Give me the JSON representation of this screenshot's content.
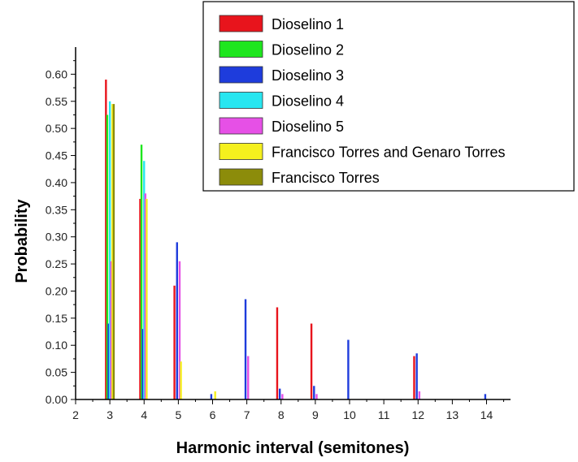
{
  "chart_data": {
    "type": "bar",
    "title": "",
    "xlabel": "Harmonic interval (semitones)",
    "ylabel": "Probability",
    "xlim": [
      2,
      14.7
    ],
    "ylim": [
      0,
      0.65
    ],
    "x_ticks": [
      2,
      3,
      4,
      5,
      6,
      7,
      8,
      9,
      10,
      11,
      12,
      13,
      14
    ],
    "y_ticks": [
      0.0,
      0.05,
      0.1,
      0.15,
      0.2,
      0.25,
      0.3,
      0.35,
      0.4,
      0.45,
      0.5,
      0.55,
      0.6
    ],
    "grid": false,
    "legend_position": "top-right",
    "series": [
      {
        "name": "Dioselino 1",
        "color": "#e8141c",
        "x": [
          3,
          4,
          5,
          8,
          9,
          10,
          12
        ],
        "values": [
          0.59,
          0.37,
          0.21,
          0.17,
          0.14,
          0.0,
          0.08
        ]
      },
      {
        "name": "Dioselino 2",
        "color": "#1ee61e",
        "x": [
          3,
          4
        ],
        "values": [
          0.525,
          0.47
        ]
      },
      {
        "name": "Dioselino 3",
        "color": "#1e3cdc",
        "x": [
          3,
          4,
          5,
          6,
          7,
          8,
          9,
          10,
          12,
          14
        ],
        "values": [
          0.14,
          0.13,
          0.29,
          0.01,
          0.185,
          0.02,
          0.025,
          0.11,
          0.085,
          0.01
        ]
      },
      {
        "name": "Dioselino 4",
        "color": "#28e6f0",
        "x": [
          3,
          4
        ],
        "values": [
          0.55,
          0.44
        ]
      },
      {
        "name": "Dioselino 5",
        "color": "#e650e6",
        "x": [
          3,
          4,
          5,
          7,
          8,
          9,
          12
        ],
        "values": [
          0.255,
          0.38,
          0.255,
          0.08,
          0.01,
          0.01,
          0.015
        ]
      },
      {
        "name": "Francisco Torres and Genaro Torres",
        "color": "#f5f01e",
        "x": [
          3,
          4,
          5,
          6
        ],
        "values": [
          0.545,
          0.37,
          0.07,
          0.015
        ]
      },
      {
        "name": "Francisco Torres",
        "color": "#8c8c0a",
        "x": [
          3
        ],
        "values": [
          0.545
        ]
      }
    ]
  }
}
